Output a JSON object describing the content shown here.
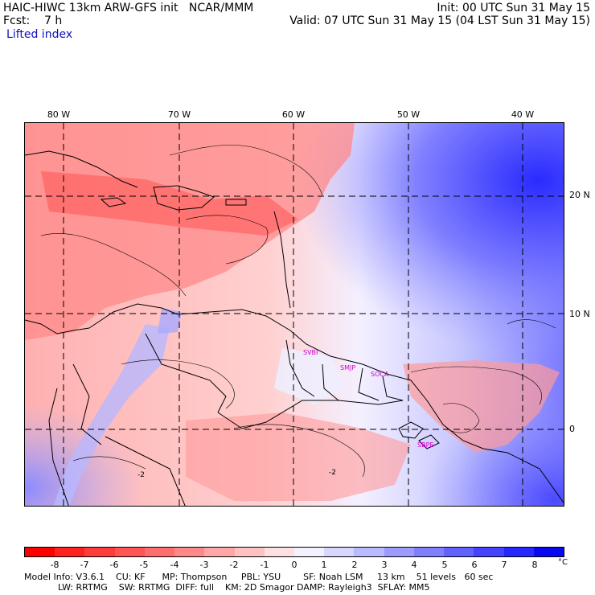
{
  "header": {
    "title": "HAIC-HIWC 13km ARW-GFS init   NCAR/MMM",
    "init": "Init: 00 UTC Sun 31 May 15",
    "fcst": "Fcst:    7 h",
    "valid": "Valid: 07 UTC Sun 31 May 15 (04 LST Sun 31 May 15)",
    "field": "Lifted index"
  },
  "map": {
    "lon_labels": [
      "80 W",
      "70 W",
      "60 W",
      "50 W",
      "40 W"
    ],
    "lat_labels": [
      "20 N",
      "10 N",
      "0"
    ],
    "stations": [
      "SVBI",
      "SMJP",
      "SOCA",
      "SBPE"
    ],
    "contour_labels": [
      "-2",
      "-2"
    ]
  },
  "colorbar": {
    "labels": [
      "-8",
      "-7",
      "-6",
      "-5",
      "-4",
      "-3",
      "-2",
      "-1",
      "0",
      "1",
      "2",
      "3",
      "4",
      "5",
      "6",
      "7",
      "8"
    ],
    "unit": "°C",
    "colors": [
      "#ff0000",
      "#ff2020",
      "#ff3c3c",
      "#ff5555",
      "#ff6e6e",
      "#ff8888",
      "#ffa6a6",
      "#ffc2c2",
      "#ffe0e0",
      "#f2f2ff",
      "#d6d6ff",
      "#babaff",
      "#9c9cff",
      "#8080ff",
      "#6262ff",
      "#4444ff",
      "#2626ff",
      "#0808f0"
    ]
  },
  "footer": {
    "line1": "Model Info: V3.6.1    CU: KF      MP: Thompson     PBL: YSU        SF: Noah LSM     13 km    51 levels   60 sec",
    "line2": "            LW: RRTMG    SW: RRTMG  DIFF: full    KM: 2D Smagor DAMP: Rayleigh3  SFLAY: MM5"
  }
}
